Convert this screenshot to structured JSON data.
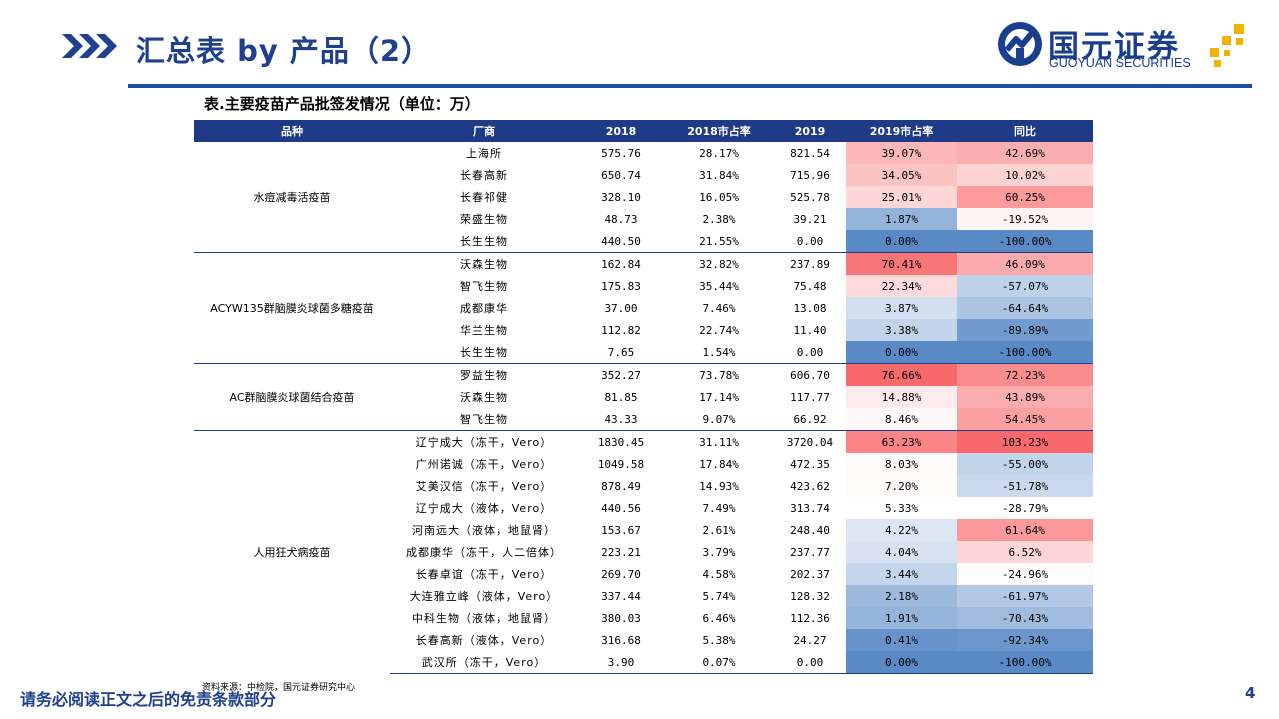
{
  "header": {
    "title": "汇总表 by 产品（2）",
    "logo_cn": "国元证券",
    "logo_en": "GUOYUAN SECURITIES"
  },
  "table": {
    "caption": "表.主要疫苗产品批签发情况（单位：万）",
    "columns": [
      "品种",
      "厂商",
      "2018",
      "2018市占率",
      "2019",
      "2019市占率",
      "同比"
    ],
    "groups": [
      {
        "product": "水痘减毒活疫苗",
        "rows": [
          {
            "maker": "上海所",
            "v2018": "575.76",
            "s2018": "28.17%",
            "v2019": "821.54",
            "s2019": "39.07%",
            "yoy": "42.69%"
          },
          {
            "maker": "长春高新",
            "v2018": "650.74",
            "s2018": "31.84%",
            "v2019": "715.96",
            "s2019": "34.05%",
            "yoy": "10.02%"
          },
          {
            "maker": "长春祁健",
            "v2018": "328.10",
            "s2018": "16.05%",
            "v2019": "525.78",
            "s2019": "25.01%",
            "yoy": "60.25%"
          },
          {
            "maker": "荣盛生物",
            "v2018": "48.73",
            "s2018": "2.38%",
            "v2019": "39.21",
            "s2019": "1.87%",
            "yoy": "-19.52%"
          },
          {
            "maker": "长生生物",
            "v2018": "440.50",
            "s2018": "21.55%",
            "v2019": "0.00",
            "s2019": "0.00%",
            "yoy": "-100.00%"
          }
        ]
      },
      {
        "product": "ACYW135群脑膜炎球菌多糖疫苗",
        "rows": [
          {
            "maker": "沃森生物",
            "v2018": "162.84",
            "s2018": "32.82%",
            "v2019": "237.89",
            "s2019": "70.41%",
            "yoy": "46.09%"
          },
          {
            "maker": "智飞生物",
            "v2018": "175.83",
            "s2018": "35.44%",
            "v2019": "75.48",
            "s2019": "22.34%",
            "yoy": "-57.07%"
          },
          {
            "maker": "成都康华",
            "v2018": "37.00",
            "s2018": "7.46%",
            "v2019": "13.08",
            "s2019": "3.87%",
            "yoy": "-64.64%"
          },
          {
            "maker": "华兰生物",
            "v2018": "112.82",
            "s2018": "22.74%",
            "v2019": "11.40",
            "s2019": "3.38%",
            "yoy": "-89.89%"
          },
          {
            "maker": "长生生物",
            "v2018": "7.65",
            "s2018": "1.54%",
            "v2019": "0.00",
            "s2019": "0.00%",
            "yoy": "-100.00%"
          }
        ]
      },
      {
        "product": "AC群脑膜炎球菌结合疫苗",
        "rows": [
          {
            "maker": "罗益生物",
            "v2018": "352.27",
            "s2018": "73.78%",
            "v2019": "606.70",
            "s2019": "76.66%",
            "yoy": "72.23%"
          },
          {
            "maker": "沃森生物",
            "v2018": "81.85",
            "s2018": "17.14%",
            "v2019": "117.77",
            "s2019": "14.88%",
            "yoy": "43.89%"
          },
          {
            "maker": "智飞生物",
            "v2018": "43.33",
            "s2018": "9.07%",
            "v2019": "66.92",
            "s2019": "8.46%",
            "yoy": "54.45%"
          }
        ]
      },
      {
        "product": "人用狂犬病疫苗",
        "rows": [
          {
            "maker": "辽宁成大（冻干，Vero）",
            "v2018": "1830.45",
            "s2018": "31.11%",
            "v2019": "3720.04",
            "s2019": "63.23%",
            "yoy": "103.23%"
          },
          {
            "maker": "广州诺诚（冻干，Vero）",
            "v2018": "1049.58",
            "s2018": "17.84%",
            "v2019": "472.35",
            "s2019": "8.03%",
            "yoy": "-55.00%"
          },
          {
            "maker": "艾美汉信（冻干，Vero）",
            "v2018": "878.49",
            "s2018": "14.93%",
            "v2019": "423.62",
            "s2019": "7.20%",
            "yoy": "-51.78%"
          },
          {
            "maker": "辽宁成大（液体，Vero）",
            "v2018": "440.56",
            "s2018": "7.49%",
            "v2019": "313.74",
            "s2019": "5.33%",
            "yoy": "-28.79%"
          },
          {
            "maker": "河南远大（液体，地鼠肾）",
            "v2018": "153.67",
            "s2018": "2.61%",
            "v2019": "248.40",
            "s2019": "4.22%",
            "yoy": "61.64%"
          },
          {
            "maker": "成都康华（冻干，人二倍体）",
            "v2018": "223.21",
            "s2018": "3.79%",
            "v2019": "237.77",
            "s2019": "4.04%",
            "yoy": "6.52%"
          },
          {
            "maker": "长春卓谊（冻干，Vero）",
            "v2018": "269.70",
            "s2018": "4.58%",
            "v2019": "202.37",
            "s2019": "3.44%",
            "yoy": "-24.96%"
          },
          {
            "maker": "大连雅立峰（液体，Vero）",
            "v2018": "337.44",
            "s2018": "5.74%",
            "v2019": "128.32",
            "s2019": "2.18%",
            "yoy": "-61.97%"
          },
          {
            "maker": "中科生物（液体，地鼠肾）",
            "v2018": "380.03",
            "s2018": "6.46%",
            "v2019": "112.36",
            "s2019": "1.91%",
            "yoy": "-70.43%"
          },
          {
            "maker": "长春高新（液体，Vero）",
            "v2018": "316.68",
            "s2018": "5.38%",
            "v2019": "24.27",
            "s2019": "0.41%",
            "yoy": "-92.34%"
          },
          {
            "maker": "武汉所（冻干，Vero）",
            "v2018": "3.90",
            "s2018": "0.07%",
            "v2019": "0.00",
            "s2019": "0.00%",
            "yoy": "-100.00%"
          }
        ]
      }
    ]
  },
  "footer": {
    "source": "资料来源：中检院，国元证券研究中心",
    "disclaimer": "请务必阅读正文之后的免责条款部分",
    "page_number": "4"
  },
  "colors": {
    "brand_blue": "#1f3f8f",
    "header_blue": "#1f3a86",
    "heat_red": "#f8696b",
    "heat_blue": "#5a8ac6",
    "heat_white": "#ffffff"
  }
}
